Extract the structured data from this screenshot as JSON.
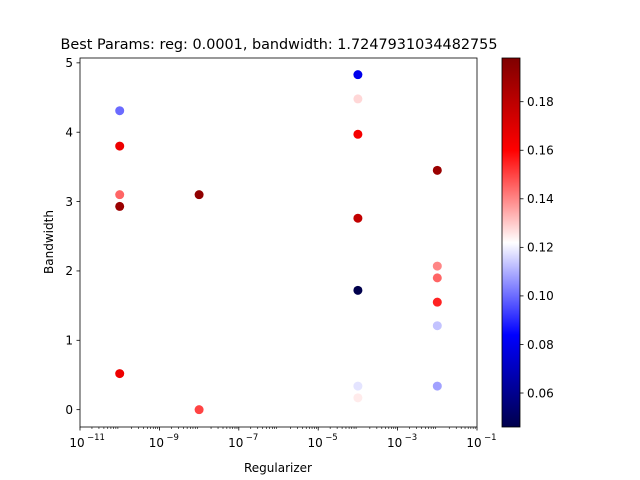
{
  "chart_data": {
    "type": "scatter",
    "title": "Best Params: reg: 0.0001, bandwidth: 1.7247931034482755",
    "xlabel": "Regularizer",
    "ylabel": "Bandwidth",
    "xscale": "log",
    "xlim": [
      1e-11,
      0.1
    ],
    "ylim": [
      -0.25,
      5.07
    ],
    "x_ticks": [
      {
        "value": 1e-11,
        "base": "10",
        "exp": "−11"
      },
      {
        "value": 1e-09,
        "base": "10",
        "exp": "−9"
      },
      {
        "value": 1e-07,
        "base": "10",
        "exp": "−7"
      },
      {
        "value": 1e-05,
        "base": "10",
        "exp": "−5"
      },
      {
        "value": 0.001,
        "base": "10",
        "exp": "−3"
      },
      {
        "value": 0.1,
        "base": "10",
        "exp": "−1"
      }
    ],
    "y_ticks": [
      {
        "value": 0,
        "label": "0"
      },
      {
        "value": 1,
        "label": "1"
      },
      {
        "value": 2,
        "label": "2"
      },
      {
        "value": 3,
        "label": "3"
      },
      {
        "value": 4,
        "label": "4"
      },
      {
        "value": 5,
        "label": "5"
      }
    ],
    "colormap": "seismic",
    "colorbar": {
      "vmin": 0.046,
      "vmax": 0.198,
      "ticks": [
        {
          "value": 0.06,
          "label": "0.06"
        },
        {
          "value": 0.08,
          "label": "0.08"
        },
        {
          "value": 0.1,
          "label": "0.10"
        },
        {
          "value": 0.12,
          "label": "0.12"
        },
        {
          "value": 0.14,
          "label": "0.14"
        },
        {
          "value": 0.16,
          "label": "0.16"
        },
        {
          "value": 0.18,
          "label": "0.18"
        }
      ]
    },
    "grid": false,
    "points": [
      {
        "x": 1e-10,
        "y": 4.31,
        "c": 0.1
      },
      {
        "x": 1e-10,
        "y": 3.8,
        "c": 0.165
      },
      {
        "x": 1e-10,
        "y": 3.1,
        "c": 0.145
      },
      {
        "x": 1e-10,
        "y": 2.93,
        "c": 0.19
      },
      {
        "x": 1e-10,
        "y": 0.52,
        "c": 0.165
      },
      {
        "x": 1e-08,
        "y": 3.1,
        "c": 0.193
      },
      {
        "x": 1e-08,
        "y": 0.0,
        "c": 0.15
      },
      {
        "x": 0.0001,
        "y": 4.83,
        "c": 0.08
      },
      {
        "x": 0.0001,
        "y": 4.48,
        "c": 0.128
      },
      {
        "x": 0.0001,
        "y": 3.97,
        "c": 0.163
      },
      {
        "x": 0.0001,
        "y": 2.76,
        "c": 0.178
      },
      {
        "x": 0.0001,
        "y": 1.72,
        "c": 0.046
      },
      {
        "x": 0.0001,
        "y": 0.34,
        "c": 0.118
      },
      {
        "x": 0.0001,
        "y": 0.17,
        "c": 0.125
      },
      {
        "x": 0.01,
        "y": 3.45,
        "c": 0.19
      },
      {
        "x": 0.01,
        "y": 2.07,
        "c": 0.14
      },
      {
        "x": 0.01,
        "y": 1.9,
        "c": 0.145
      },
      {
        "x": 0.01,
        "y": 1.55,
        "c": 0.155
      },
      {
        "x": 0.01,
        "y": 1.21,
        "c": 0.113
      },
      {
        "x": 0.01,
        "y": 0.34,
        "c": 0.108
      }
    ]
  }
}
